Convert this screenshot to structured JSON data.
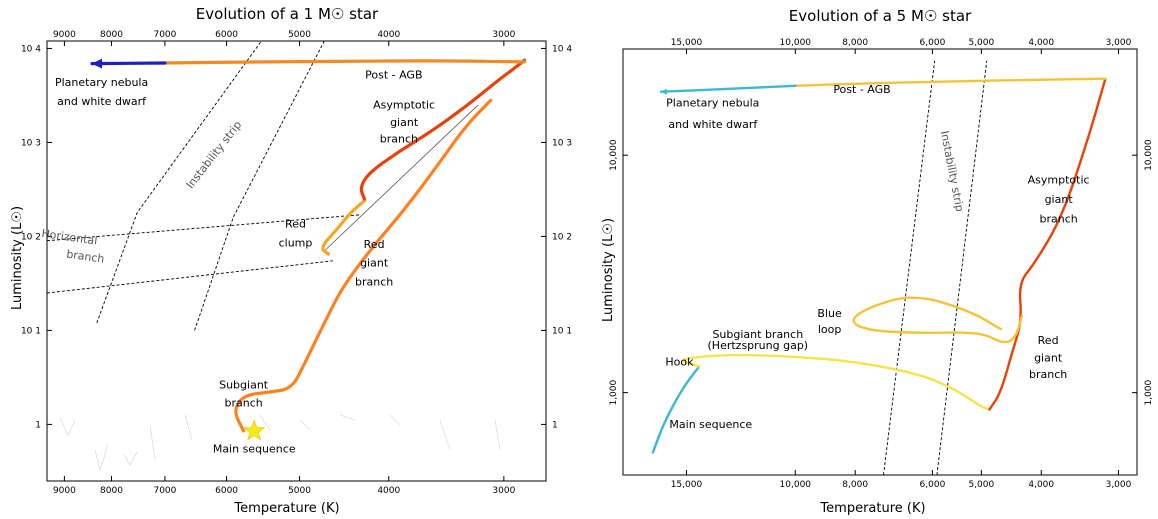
{
  "chart_data": [
    {
      "type": "line",
      "title": "Evolution of a 1 M☉ star",
      "xlabel": "Temperature (K)",
      "ylabel": "Luminosity (L☉)",
      "x_scale": "log",
      "x_reversed": true,
      "xlim": [
        9400,
        2700
      ],
      "x_ticks": [
        9000,
        8000,
        7000,
        6000,
        5000,
        4000,
        3000
      ],
      "x_tick_labels": [
        "9000",
        "8000",
        "7000",
        "6000",
        "5000",
        "4000",
        "3000"
      ],
      "y_scale": "log",
      "ylim": [
        0.25,
        12000
      ],
      "y_ticks": [
        1,
        10,
        100,
        1000,
        10000
      ],
      "y_tick_labels": [
        "1",
        "10 1",
        "10 2",
        "10 3",
        "10 4"
      ],
      "grid": false,
      "series": [
        {
          "color": "#ff8020",
          "x": [
            5750,
            5900,
            5750,
            5400,
            5100,
            4950,
            4700,
            4500,
            4200,
            3850,
            3550,
            3300,
            3100
          ],
          "y": [
            0.85,
            1.4,
            2.05,
            2.2,
            2.4,
            4.2,
            12,
            28,
            70,
            190,
            550,
            1500,
            2800
          ]
        },
        {
          "color": "#f5a623",
          "x": [
            4650,
            4750,
            4550,
            4400,
            4250
          ],
          "y": [
            65,
            75,
            120,
            180,
            240
          ]
        },
        {
          "color": "#e8410a",
          "x": [
            4250,
            4300,
            4200,
            3900,
            3600,
            3300,
            3050,
            2900,
            2850
          ],
          "y": [
            250,
            330,
            480,
            800,
            1300,
            2400,
            4500,
            6500,
            7500
          ]
        },
        {
          "color": "#f08a24",
          "x": [
            2850,
            3500,
            4500,
            5500,
            7000
          ],
          "y": [
            7200,
            7400,
            7300,
            7200,
            7000
          ]
        },
        {
          "color": "#1f1fbf",
          "x": [
            7000,
            8400
          ],
          "y": [
            7000,
            6900
          ]
        }
      ],
      "main_sequence_star": {
        "x": 5600,
        "y": 0.85,
        "color": "#f7e81a"
      },
      "instability_strip": [
        {
          "x": [
            8300,
            7500,
            5500
          ],
          "y": [
            12,
            180,
            12000
          ]
        },
        {
          "x": [
            6500,
            5900,
            4700
          ],
          "y": [
            10,
            160,
            12000
          ]
        }
      ],
      "horizontal_branch": [
        {
          "x": [
            9400,
            4300
          ],
          "y": [
            90,
            170
          ]
        },
        {
          "x": [
            9400,
            4600
          ],
          "y": [
            25,
            55
          ]
        }
      ],
      "annotations": [
        {
          "text": "Planetary nebula",
          "x": 8200,
          "y": 4000
        },
        {
          "text": "and white dwarf",
          "x": 8200,
          "y": 2500
        },
        {
          "text": "Post - AGB",
          "x": 3950,
          "y": 4800
        },
        {
          "text": "Asymptotic",
          "x": 3850,
          "y": 2300
        },
        {
          "text": "giant",
          "x": 3850,
          "y": 1500
        },
        {
          "text": "branch",
          "x": 3900,
          "y": 1000
        },
        {
          "text": "Instability strip",
          "x": 6150,
          "y": 700
        },
        {
          "text": "Horizontal",
          "x": 8900,
          "y": 90
        },
        {
          "text": "branch",
          "x": 8550,
          "y": 56
        },
        {
          "text": "Red",
          "x": 5050,
          "y": 125
        },
        {
          "text": "clump",
          "x": 5050,
          "y": 78
        },
        {
          "text": "Red",
          "x": 4150,
          "y": 75
        },
        {
          "text": "giant",
          "x": 4150,
          "y": 48
        },
        {
          "text": "branch",
          "x": 4150,
          "y": 30
        },
        {
          "text": "Subgiant",
          "x": 5750,
          "y": 2.4
        },
        {
          "text": "branch",
          "x": 5750,
          "y": 1.55
        },
        {
          "text": "Main sequence",
          "x": 5600,
          "y": 0.5
        }
      ]
    },
    {
      "type": "line",
      "title": "Evolution of a 5 M☉ star",
      "xlabel": "Temperature (K)",
      "ylabel": "Luminosity (L☉)",
      "x_scale": "log",
      "x_reversed": true,
      "xlim": [
        19000,
        2800
      ],
      "x_ticks": [
        15000,
        10000,
        8000,
        6000,
        5000,
        4000,
        3000
      ],
      "x_tick_labels": [
        "15,000",
        "10,000",
        "8,000",
        "6,000",
        "5,000",
        "4,000",
        "3,000"
      ],
      "y_scale": "log",
      "ylim": [
        450,
        28000
      ],
      "y_ticks": [
        1000,
        10000
      ],
      "y_tick_labels": [
        "1,000",
        "10,000"
      ],
      "grid": false,
      "series": [
        {
          "color": "#3fb6d6",
          "x": [
            17000,
            16300,
            15200,
            14300
          ],
          "y": [
            560,
            750,
            1050,
            1290
          ]
        },
        {
          "color": "#f2e44a",
          "x": [
            14300,
            15600,
            13000,
            10000,
            8000,
            6300,
            5500,
            5000,
            4850
          ],
          "y": [
            1290,
            1380,
            1450,
            1420,
            1350,
            1200,
            1030,
            870,
            850
          ]
        },
        {
          "color": "#e8410a",
          "x": [
            4850,
            4650,
            4450,
            4300,
            4350,
            4100,
            3700,
            3350,
            3150
          ],
          "y": [
            850,
            1000,
            1500,
            2000,
            2900,
            3500,
            5500,
            12000,
            21000
          ]
        },
        {
          "color": "#f3c33a",
          "x": [
            4650,
            5200,
            6400,
            7600,
            8200,
            7600,
            6200,
            5000,
            4600,
            4400,
            4300
          ],
          "y": [
            1850,
            2200,
            2600,
            2300,
            2000,
            1820,
            1780,
            1800,
            1600,
            1700,
            2100
          ]
        },
        {
          "color": "#f3c33a",
          "x": [
            3150,
            4000,
            6000,
            8000,
            10000
          ],
          "y": [
            21000,
            20800,
            20400,
            20000,
            19600
          ]
        },
        {
          "color": "#3fb6d6",
          "x": [
            10000,
            13000,
            16500
          ],
          "y": [
            19600,
            19000,
            18500
          ]
        }
      ],
      "instability_strip": [
        {
          "x": [
            7200,
            5950
          ],
          "y": [
            450,
            25000
          ]
        },
        {
          "x": [
            5900,
            4900
          ],
          "y": [
            450,
            25000
          ]
        }
      ],
      "annotations": [
        {
          "text": "Planetary nebula",
          "x": 13600,
          "y": 16000
        },
        {
          "text": "and white dwarf",
          "x": 13600,
          "y": 13000
        },
        {
          "text": "Post - AGB",
          "x": 7800,
          "y": 18300
        },
        {
          "text": "Instability strip",
          "x": 5650,
          "y": 8500
        },
        {
          "text": "Asymptotic",
          "x": 3750,
          "y": 7600
        },
        {
          "text": "giant",
          "x": 3750,
          "y": 6300
        },
        {
          "text": "branch",
          "x": 3750,
          "y": 5200
        },
        {
          "text": "Blue",
          "x": 8800,
          "y": 2080
        },
        {
          "text": "loop",
          "x": 8800,
          "y": 1780
        },
        {
          "text": "Subgiant branch",
          "x": 11500,
          "y": 1700
        },
        {
          "text": "(Hertzsprung gap)",
          "x": 11500,
          "y": 1530
        },
        {
          "text": "Hook",
          "x": 15400,
          "y": 1300
        },
        {
          "text": "Red",
          "x": 3900,
          "y": 1600
        },
        {
          "text": "giant",
          "x": 3900,
          "y": 1350
        },
        {
          "text": "branch",
          "x": 3900,
          "y": 1150
        },
        {
          "text": "Main sequence",
          "x": 13700,
          "y": 710
        }
      ]
    }
  ]
}
